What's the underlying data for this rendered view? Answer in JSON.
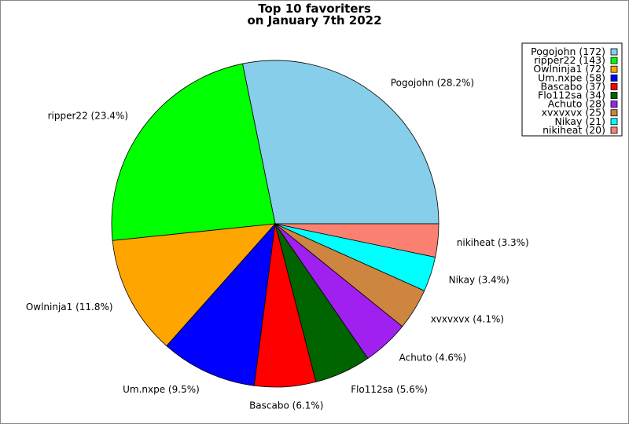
{
  "chart_data": {
    "type": "pie",
    "title_lines": [
      "Top 10 favoriters",
      "on January 7th 2022"
    ],
    "slices": [
      {
        "name": "Pogojohn",
        "value": 172,
        "percent": "28.2%",
        "color": "#87ceeb"
      },
      {
        "name": "ripper22",
        "value": 143,
        "percent": "23.4%",
        "color": "#00ff00"
      },
      {
        "name": "Owlninja1",
        "value": 72,
        "percent": "11.8%",
        "color": "#ffa500"
      },
      {
        "name": "Um.nxpe",
        "value": 58,
        "percent": "9.5%",
        "color": "#0000ff"
      },
      {
        "name": "Bascabo",
        "value": 37,
        "percent": "6.1%",
        "color": "#ff0000"
      },
      {
        "name": "Flo112sa",
        "value": 34,
        "percent": "5.6%",
        "color": "#006400"
      },
      {
        "name": "Achuto",
        "value": 28,
        "percent": "4.6%",
        "color": "#a020f0"
      },
      {
        "name": "xvxvxvx",
        "value": 25,
        "percent": "4.1%",
        "color": "#cd853f"
      },
      {
        "name": "Nikay",
        "value": 21,
        "percent": "3.4%",
        "color": "#00ffff"
      },
      {
        "name": "nikiheat",
        "value": 20,
        "percent": "3.3%",
        "color": "#fa8072"
      }
    ],
    "legend_position": "top-right"
  }
}
